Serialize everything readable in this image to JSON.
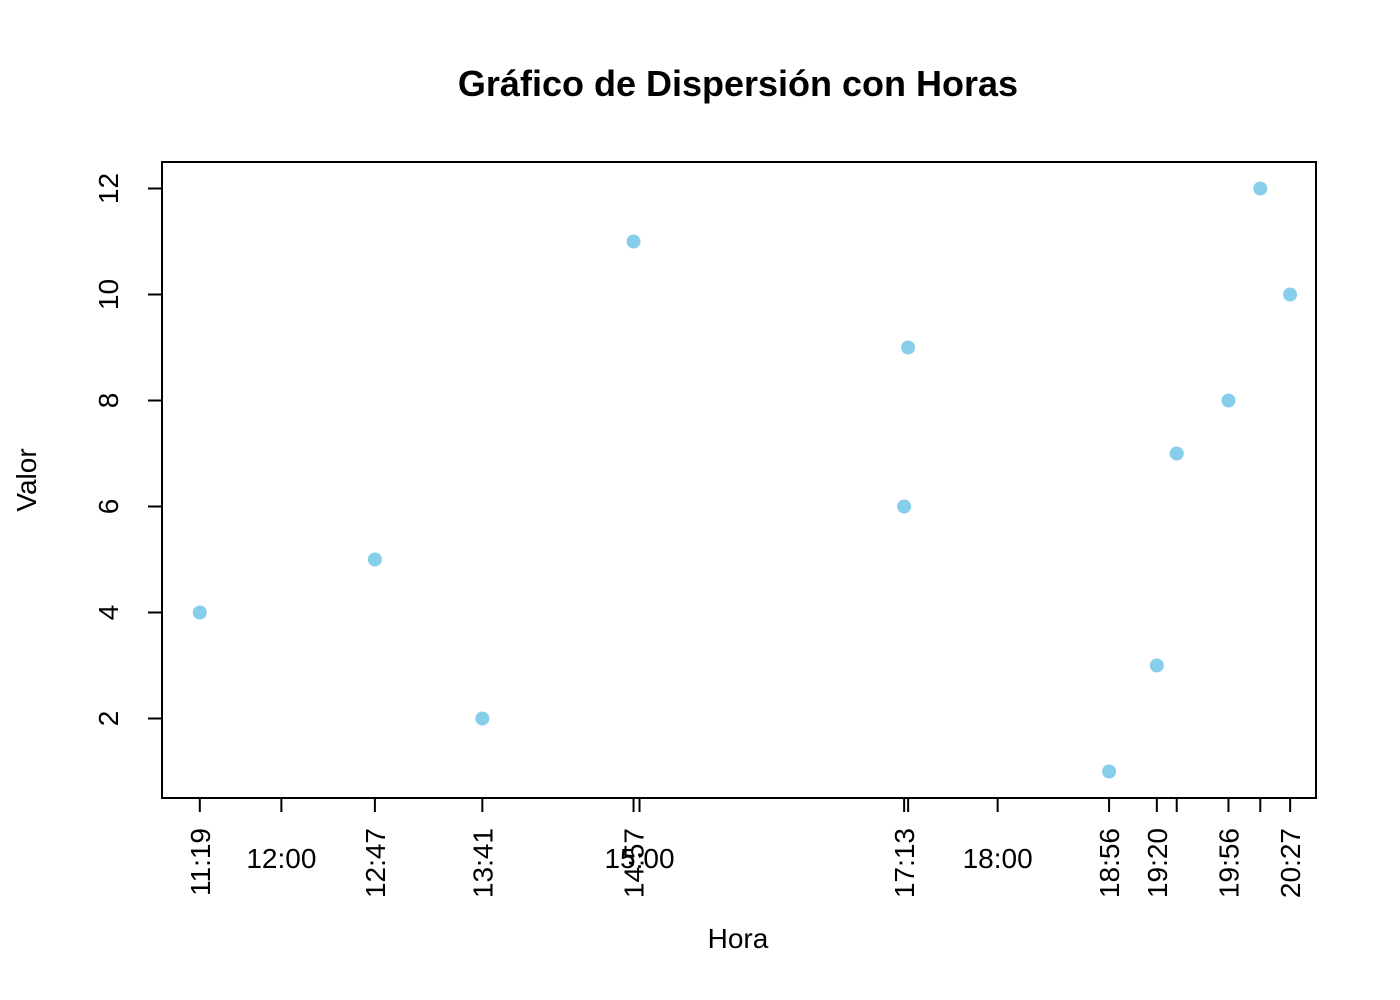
{
  "chart_data": {
    "type": "scatter",
    "title": "Gráfico de Dispersión con Horas",
    "xlabel": "Hora",
    "ylabel": "Valor",
    "x_unit": "hour of day (HH:MM)",
    "xlim": [
      "11:00",
      "20:40"
    ],
    "ylim": [
      0.5,
      12.5
    ],
    "yticks": [
      2,
      4,
      6,
      8,
      10,
      12
    ],
    "grid": false,
    "legend": "none",
    "point_color": "#87CEEB",
    "points": [
      {
        "x": "11:19",
        "y": 4
      },
      {
        "x": "12:47",
        "y": 5
      },
      {
        "x": "13:41",
        "y": 2
      },
      {
        "x": "14:57",
        "y": 11
      },
      {
        "x": "17:13",
        "y": 6
      },
      {
        "x": "17:15",
        "y": 9
      },
      {
        "x": "18:56",
        "y": 1
      },
      {
        "x": "19:20",
        "y": 3
      },
      {
        "x": "19:30",
        "y": 7
      },
      {
        "x": "19:56",
        "y": 8
      },
      {
        "x": "20:12",
        "y": 12
      },
      {
        "x": "20:27",
        "y": 10
      }
    ],
    "xticks_rotated": [
      {
        "time": "11:19",
        "label": "11:19"
      },
      {
        "time": "12:47",
        "label": "12:47"
      },
      {
        "time": "13:41",
        "label": "13:41"
      },
      {
        "time": "14:57",
        "label": "14:57"
      },
      {
        "time": "17:13",
        "label": "17:13"
      },
      {
        "time": "17:15",
        "label": ""
      },
      {
        "time": "18:56",
        "label": "18:56"
      },
      {
        "time": "19:20",
        "label": "19:20"
      },
      {
        "time": "19:30",
        "label": ""
      },
      {
        "time": "19:56",
        "label": "19:56"
      },
      {
        "time": "20:12",
        "label": ""
      },
      {
        "time": "20:27",
        "label": "20:27"
      }
    ],
    "xticks_horizontal": [
      {
        "time": "12:00",
        "label": "12:00"
      },
      {
        "time": "15:00",
        "label": "15:00"
      },
      {
        "time": "18:00",
        "label": "18:00"
      }
    ]
  }
}
